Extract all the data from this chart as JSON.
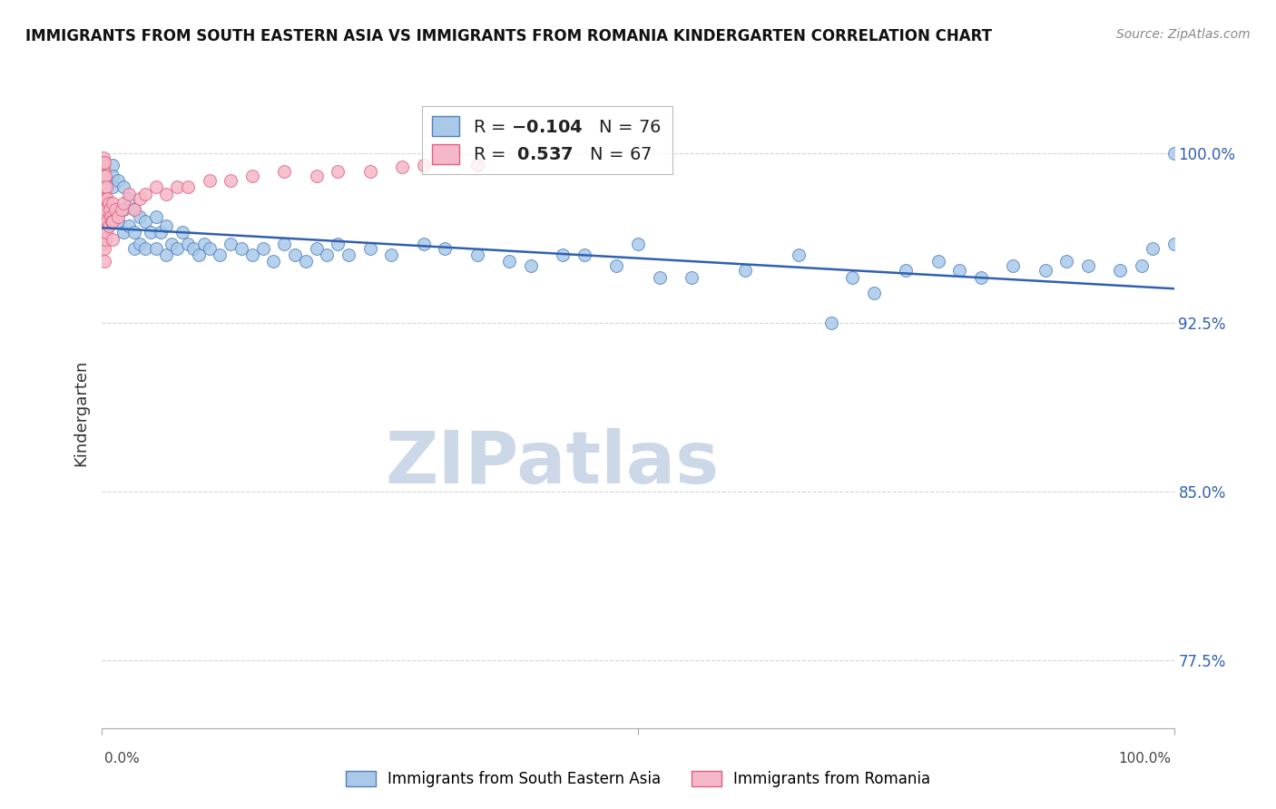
{
  "title": "IMMIGRANTS FROM SOUTH EASTERN ASIA VS IMMIGRANTS FROM ROMANIA KINDERGARTEN CORRELATION CHART",
  "source": "Source: ZipAtlas.com",
  "xlabel_bottom_left": "0.0%",
  "xlabel_bottom_right": "100.0%",
  "xlabel_center": "Immigrants from South Eastern Asia",
  "xlabel_center2": "Immigrants from Romania",
  "ylabel": "Kindergarten",
  "ytick_labels": [
    "77.5%",
    "85.0%",
    "92.5%",
    "100.0%"
  ],
  "ytick_values": [
    0.775,
    0.85,
    0.925,
    1.0
  ],
  "xlim": [
    0.0,
    1.0
  ],
  "ylim": [
    0.745,
    1.025
  ],
  "blue_R": -0.104,
  "blue_N": 76,
  "pink_R": 0.537,
  "pink_N": 67,
  "blue_color": "#aac9e8",
  "pink_color": "#f5b8c8",
  "blue_edge_color": "#5080c0",
  "pink_edge_color": "#e06080",
  "trend_color": "#3060b0",
  "watermark_color": "#ccd8e8",
  "blue_x": [
    0.01,
    0.01,
    0.01,
    0.01,
    0.015,
    0.015,
    0.02,
    0.02,
    0.02,
    0.025,
    0.025,
    0.03,
    0.03,
    0.03,
    0.035,
    0.035,
    0.04,
    0.04,
    0.045,
    0.05,
    0.05,
    0.055,
    0.06,
    0.06,
    0.065,
    0.07,
    0.075,
    0.08,
    0.085,
    0.09,
    0.095,
    0.1,
    0.11,
    0.12,
    0.13,
    0.14,
    0.15,
    0.16,
    0.17,
    0.18,
    0.19,
    0.2,
    0.21,
    0.22,
    0.23,
    0.25,
    0.27,
    0.3,
    0.32,
    0.35,
    0.38,
    0.4,
    0.43,
    0.45,
    0.48,
    0.5,
    0.52,
    0.55,
    0.6,
    0.65,
    0.68,
    0.7,
    0.72,
    0.75,
    0.78,
    0.8,
    0.82,
    0.85,
    0.88,
    0.9,
    0.92,
    0.95,
    0.97,
    0.98,
    1.0,
    1.0
  ],
  "blue_y": [
    0.995,
    0.99,
    0.985,
    0.975,
    0.988,
    0.97,
    0.985,
    0.975,
    0.965,
    0.98,
    0.968,
    0.975,
    0.965,
    0.958,
    0.972,
    0.96,
    0.97,
    0.958,
    0.965,
    0.972,
    0.958,
    0.965,
    0.968,
    0.955,
    0.96,
    0.958,
    0.965,
    0.96,
    0.958,
    0.955,
    0.96,
    0.958,
    0.955,
    0.96,
    0.958,
    0.955,
    0.958,
    0.952,
    0.96,
    0.955,
    0.952,
    0.958,
    0.955,
    0.96,
    0.955,
    0.958,
    0.955,
    0.96,
    0.958,
    0.955,
    0.952,
    0.95,
    0.955,
    0.955,
    0.95,
    0.96,
    0.945,
    0.945,
    0.948,
    0.955,
    0.925,
    0.945,
    0.938,
    0.948,
    0.952,
    0.948,
    0.945,
    0.95,
    0.948,
    0.952,
    0.95,
    0.948,
    0.95,
    0.958,
    1.0,
    0.96
  ],
  "pink_x": [
    0.001,
    0.001,
    0.001,
    0.001,
    0.001,
    0.001,
    0.001,
    0.001,
    0.001,
    0.001,
    0.001,
    0.001,
    0.001,
    0.001,
    0.001,
    0.001,
    0.001,
    0.001,
    0.001,
    0.001,
    0.002,
    0.002,
    0.002,
    0.002,
    0.002,
    0.002,
    0.002,
    0.002,
    0.003,
    0.003,
    0.003,
    0.003,
    0.004,
    0.004,
    0.004,
    0.005,
    0.005,
    0.006,
    0.006,
    0.007,
    0.008,
    0.009,
    0.01,
    0.01,
    0.01,
    0.012,
    0.015,
    0.018,
    0.02,
    0.025,
    0.03,
    0.035,
    0.04,
    0.05,
    0.06,
    0.07,
    0.08,
    0.1,
    0.12,
    0.14,
    0.17,
    0.2,
    0.22,
    0.25,
    0.28,
    0.3,
    0.35
  ],
  "pink_y": [
    0.998,
    0.996,
    0.994,
    0.992,
    0.99,
    0.988,
    0.986,
    0.984,
    0.982,
    0.98,
    0.978,
    0.976,
    0.974,
    0.972,
    0.97,
    0.968,
    0.966,
    0.964,
    0.962,
    0.96,
    0.996,
    0.99,
    0.985,
    0.978,
    0.972,
    0.965,
    0.958,
    0.952,
    0.99,
    0.98,
    0.972,
    0.962,
    0.985,
    0.975,
    0.965,
    0.98,
    0.97,
    0.978,
    0.968,
    0.975,
    0.972,
    0.97,
    0.978,
    0.97,
    0.962,
    0.975,
    0.972,
    0.975,
    0.978,
    0.982,
    0.975,
    0.98,
    0.982,
    0.985,
    0.982,
    0.985,
    0.985,
    0.988,
    0.988,
    0.99,
    0.992,
    0.99,
    0.992,
    0.992,
    0.994,
    0.995,
    0.995
  ],
  "trend_x_start": 0.0,
  "trend_x_end": 1.0,
  "trend_y_start": 0.967,
  "trend_y_end": 0.94,
  "dot_size": 100,
  "grid_color": "#cccccc",
  "background_color": "#ffffff"
}
